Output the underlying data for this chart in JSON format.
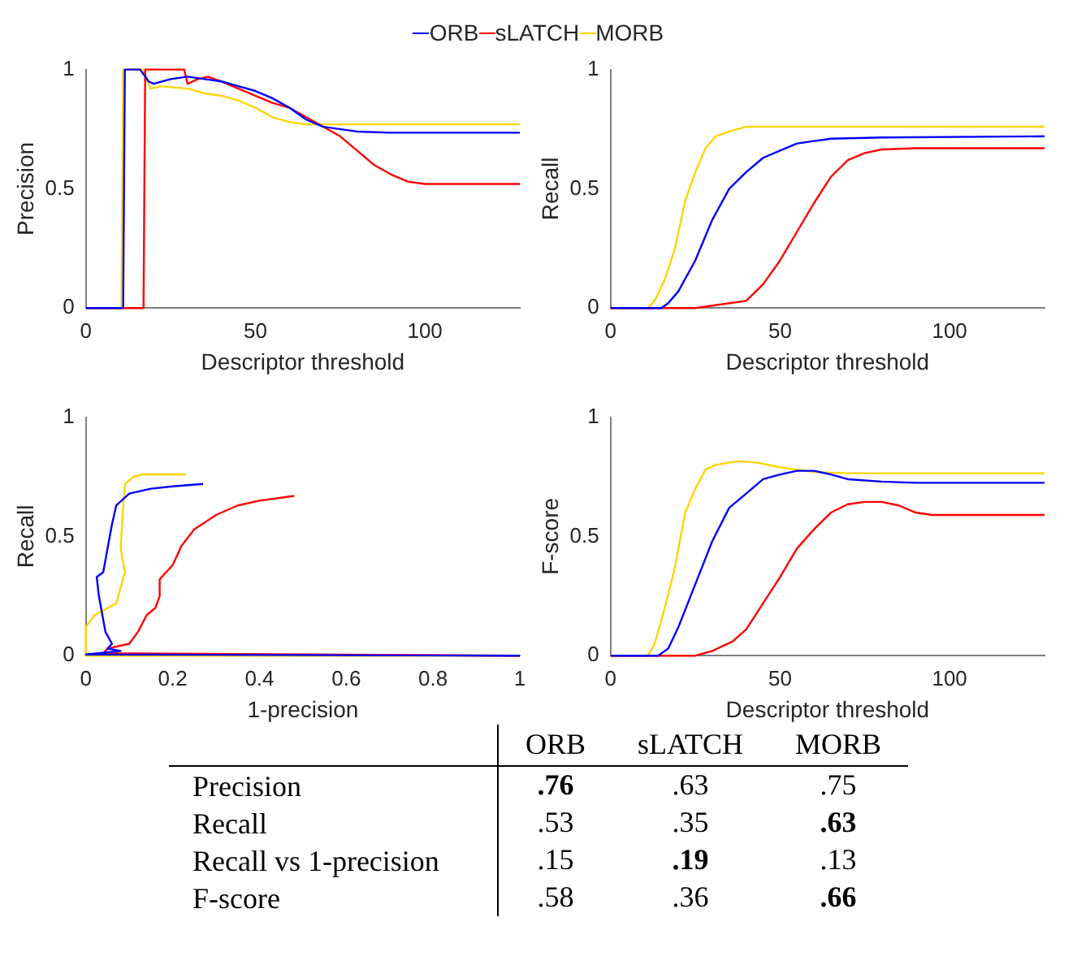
{
  "chart_data": [
    {
      "type": "line",
      "xlabel": "Descriptor threshold",
      "ylabel": "Precision",
      "xlim": [
        0,
        128
      ],
      "ylim": [
        0,
        1
      ],
      "xticks": [
        0,
        50,
        100
      ],
      "yticks": [
        0,
        0.5,
        1
      ],
      "legend": "top",
      "series": [
        {
          "name": "ORB",
          "color": "#0000ff",
          "x": [
            0,
            11,
            11.5,
            16,
            18.5,
            20,
            25,
            30,
            35,
            40,
            45,
            50,
            55,
            60,
            65,
            70,
            80,
            90,
            128
          ],
          "values": [
            0,
            0,
            1,
            1,
            0.95,
            0.94,
            0.96,
            0.97,
            0.96,
            0.95,
            0.93,
            0.91,
            0.88,
            0.84,
            0.79,
            0.76,
            0.74,
            0.735,
            0.735
          ]
        },
        {
          "name": "sLATCH",
          "color": "#ff0000",
          "x": [
            0,
            17,
            17.5,
            29,
            30,
            33,
            36,
            40,
            45,
            50,
            55,
            60,
            65,
            70,
            75,
            80,
            85,
            90,
            95,
            100,
            128
          ],
          "values": [
            0,
            0,
            1,
            1,
            0.94,
            0.96,
            0.97,
            0.95,
            0.92,
            0.89,
            0.86,
            0.84,
            0.8,
            0.76,
            0.72,
            0.66,
            0.6,
            0.56,
            0.53,
            0.52,
            0.52
          ]
        },
        {
          "name": "MORB",
          "color": "#ffd400",
          "x": [
            0,
            10.5,
            11,
            17,
            19,
            22,
            30,
            35,
            40,
            45,
            50,
            55,
            60,
            65,
            128
          ],
          "values": [
            0,
            0,
            1,
            1,
            0.92,
            0.93,
            0.92,
            0.9,
            0.89,
            0.87,
            0.84,
            0.8,
            0.78,
            0.77,
            0.77
          ]
        }
      ]
    },
    {
      "type": "line",
      "xlabel": "Descriptor threshold",
      "ylabel": "Recall",
      "xlim": [
        0,
        128
      ],
      "ylim": [
        0,
        1
      ],
      "xticks": [
        0,
        50,
        100
      ],
      "yticks": [
        0,
        0.5,
        1
      ],
      "series": [
        {
          "color": "#0000ff",
          "x": [
            0,
            15,
            17,
            20,
            25,
            30,
            35,
            40,
            45,
            50,
            55,
            60,
            65,
            80,
            128
          ],
          "values": [
            0,
            0,
            0.02,
            0.07,
            0.2,
            0.37,
            0.5,
            0.57,
            0.63,
            0.66,
            0.69,
            0.7,
            0.71,
            0.715,
            0.72
          ]
        },
        {
          "color": "#ff0000",
          "x": [
            0,
            25,
            30,
            40,
            45,
            50,
            55,
            60,
            65,
            70,
            75,
            80,
            90,
            128
          ],
          "values": [
            0,
            0,
            0.01,
            0.03,
            0.1,
            0.2,
            0.32,
            0.44,
            0.55,
            0.62,
            0.65,
            0.665,
            0.67,
            0.67
          ]
        },
        {
          "color": "#ffd400",
          "x": [
            0,
            11,
            13,
            16,
            19,
            22,
            25,
            28,
            31,
            35,
            40,
            128
          ],
          "values": [
            0,
            0,
            0.03,
            0.12,
            0.25,
            0.45,
            0.57,
            0.67,
            0.72,
            0.74,
            0.76,
            0.76
          ]
        }
      ]
    },
    {
      "type": "line",
      "xlabel": "1-precision",
      "ylabel": "Recall",
      "xlim": [
        0,
        1
      ],
      "ylim": [
        0,
        1
      ],
      "xticks": [
        0,
        0.2,
        0.4,
        0.6,
        0.8,
        1
      ],
      "yticks": [
        0,
        0.5,
        1
      ],
      "series": [
        {
          "color": "#0000ff",
          "x": [
            1,
            0,
            0.08,
            0.05,
            0.06,
            0.045,
            0.04,
            0.03,
            0.025,
            0.04,
            0.05,
            0.06,
            0.07,
            0.1,
            0.15,
            0.2,
            0.27
          ],
          "values": [
            0,
            0.005,
            0.02,
            0.03,
            0.05,
            0.1,
            0.15,
            0.25,
            0.33,
            0.35,
            0.45,
            0.55,
            0.63,
            0.68,
            0.7,
            0.71,
            0.72
          ]
        },
        {
          "color": "#ff0000",
          "x": [
            1,
            0.04,
            0.05,
            0.1,
            0.12,
            0.14,
            0.16,
            0.17,
            0.17,
            0.2,
            0.22,
            0.25,
            0.3,
            0.35,
            0.4,
            0.48
          ],
          "values": [
            0,
            0.01,
            0.03,
            0.05,
            0.1,
            0.17,
            0.2,
            0.25,
            0.32,
            0.38,
            0.46,
            0.53,
            0.59,
            0.63,
            0.65,
            0.67
          ]
        },
        {
          "color": "#ffd400",
          "x": [
            1,
            0,
            0,
            0.02,
            0.07,
            0.09,
            0.08,
            0.085,
            0.09,
            0.11,
            0.13,
            0.23
          ],
          "values": [
            0,
            0,
            0.12,
            0.17,
            0.22,
            0.35,
            0.45,
            0.6,
            0.72,
            0.75,
            0.76,
            0.76
          ]
        }
      ]
    },
    {
      "type": "line",
      "xlabel": "Descriptor threshold",
      "ylabel": "F-score",
      "xlim": [
        0,
        128
      ],
      "ylim": [
        0,
        1
      ],
      "xticks": [
        0,
        50,
        100
      ],
      "yticks": [
        0,
        0.5,
        1
      ],
      "series": [
        {
          "color": "#0000ff",
          "x": [
            0,
            14,
            17,
            20,
            25,
            30,
            35,
            40,
            45,
            50,
            55,
            60,
            65,
            70,
            80,
            90,
            128
          ],
          "values": [
            0,
            0,
            0.03,
            0.12,
            0.3,
            0.48,
            0.62,
            0.68,
            0.74,
            0.76,
            0.775,
            0.775,
            0.76,
            0.74,
            0.73,
            0.725,
            0.725
          ]
        },
        {
          "color": "#ff0000",
          "x": [
            0,
            25,
            30,
            36,
            40,
            45,
            50,
            55,
            60,
            65,
            70,
            75,
            80,
            85,
            90,
            95,
            128
          ],
          "values": [
            0,
            0,
            0.02,
            0.06,
            0.11,
            0.22,
            0.33,
            0.45,
            0.53,
            0.6,
            0.635,
            0.645,
            0.645,
            0.63,
            0.6,
            0.59,
            0.59
          ]
        },
        {
          "color": "#ffd400",
          "x": [
            0,
            11,
            13,
            16,
            19,
            22,
            25,
            28,
            31,
            35,
            38,
            43,
            50,
            55,
            60,
            70,
            128
          ],
          "values": [
            0,
            0,
            0.05,
            0.2,
            0.37,
            0.6,
            0.7,
            0.78,
            0.8,
            0.81,
            0.815,
            0.81,
            0.79,
            0.78,
            0.77,
            0.765,
            0.765
          ]
        }
      ]
    },
    {
      "type": "other",
      "categories": [
        "ORB",
        "sLATCH",
        "MORB"
      ],
      "y_categories": [
        "Precision",
        "Recall",
        "Recall vs 1-precision",
        "F-score"
      ],
      "cell_labels": [
        [
          ".76",
          ".63",
          ".75"
        ],
        [
          ".53",
          ".35",
          ".63"
        ],
        [
          ".15",
          ".19",
          ".13"
        ],
        [
          ".58",
          ".36",
          ".66"
        ]
      ]
    }
  ]
}
